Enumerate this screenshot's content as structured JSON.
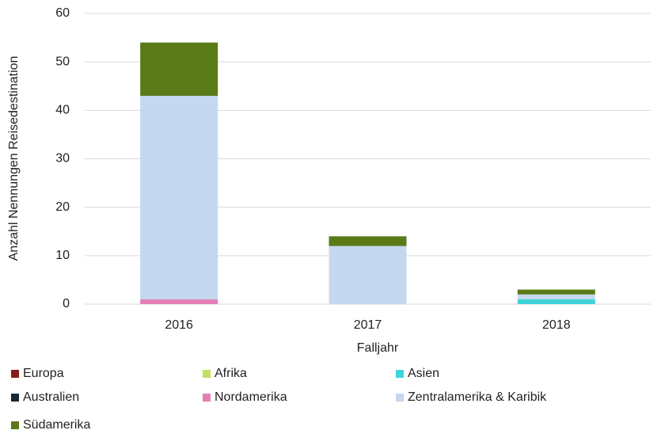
{
  "chart_data": {
    "type": "bar",
    "stacked": true,
    "categories": [
      "2016",
      "2017",
      "2018"
    ],
    "x_label": "Falljahr",
    "y_label": "Anzahl Nennungen Reisedestination",
    "series": [
      {
        "name": "Europa",
        "color": "#8b1a1a",
        "values": [
          0,
          0,
          0
        ]
      },
      {
        "name": "Afrika",
        "color": "#c2e05f",
        "values": [
          0,
          0,
          0
        ]
      },
      {
        "name": "Asien",
        "color": "#3fd4d9",
        "values": [
          0,
          0,
          1
        ]
      },
      {
        "name": "Australien",
        "color": "#17283a",
        "values": [
          0,
          0,
          0
        ]
      },
      {
        "name": "Nordamerika",
        "color": "#e47fb8",
        "values": [
          1,
          0,
          0
        ]
      },
      {
        "name": "Zentralamerika & Karibik",
        "color": "#c4d8ef",
        "values": [
          42,
          12,
          1
        ]
      },
      {
        "name": "Südamerika",
        "color": "#5a7a18",
        "values": [
          11,
          2,
          1
        ]
      }
    ],
    "ylim": [
      0,
      60
    ],
    "yticks": [
      0,
      10,
      20,
      30,
      40,
      50,
      60
    ],
    "grid": true,
    "legend": "bottom"
  }
}
